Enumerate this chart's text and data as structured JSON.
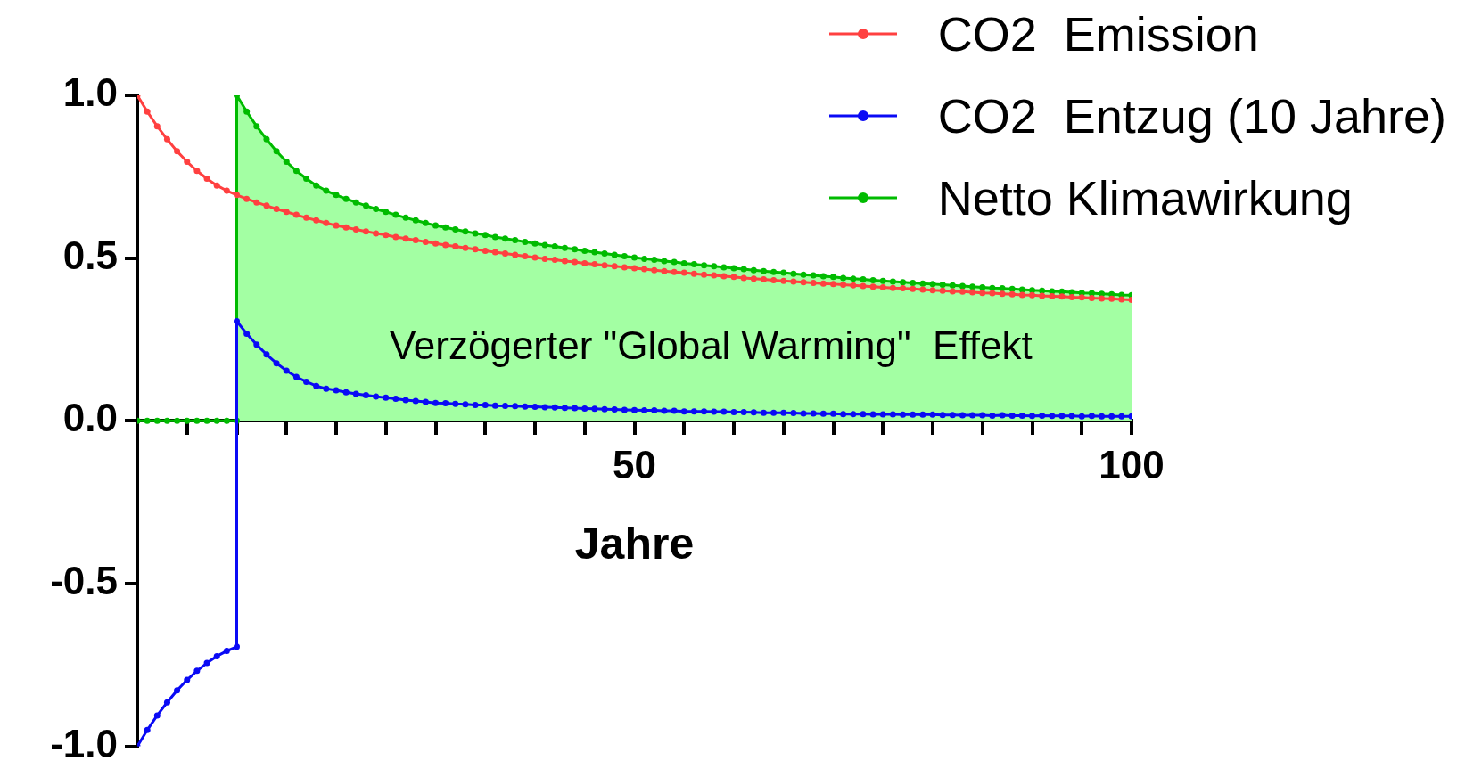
{
  "chart_data": {
    "type": "line",
    "xlabel": "Jahre",
    "legend": "top right",
    "marker": "circle",
    "line_style": "solid",
    "xlim": [
      0,
      100
    ],
    "ylim": [
      -1,
      1
    ],
    "xticks": [
      {
        "value": 0,
        "label": null
      },
      {
        "value": 5,
        "label": null
      },
      {
        "value": 10,
        "label": null
      },
      {
        "value": 15,
        "label": null
      },
      {
        "value": 20,
        "label": null
      },
      {
        "value": 25,
        "label": null
      },
      {
        "value": 30,
        "label": null
      },
      {
        "value": 35,
        "label": null
      },
      {
        "value": 40,
        "label": null
      },
      {
        "value": 45,
        "label": null
      },
      50,
      {
        "value": 55,
        "label": null
      },
      {
        "value": 60,
        "label": null
      },
      {
        "value": 65,
        "label": null
      },
      {
        "value": 70,
        "label": null
      },
      {
        "value": 75,
        "label": null
      },
      {
        "value": 80,
        "label": null
      },
      {
        "value": 85,
        "label": null
      },
      {
        "value": 90,
        "label": null
      },
      {
        "value": 95,
        "label": null
      },
      100
    ],
    "yticks": [
      {
        "value": -1,
        "label": "-1.0"
      },
      {
        "value": -0.5,
        "label": "-0.5"
      },
      {
        "value": 0,
        "label": "0.0"
      },
      {
        "value": 0.5,
        "label": "0.5"
      },
      {
        "value": 1,
        "label": "1.0"
      }
    ],
    "annotations": [
      "Verzögerter \"Global Warming\"  Effekt"
    ],
    "series": [
      {
        "name": "CO2  Emission",
        "color": "#ff4040",
        "x": [
          0,
          1,
          2,
          3,
          4,
          5,
          6,
          7,
          8,
          9,
          10,
          11,
          12,
          13,
          14,
          15,
          16,
          17,
          18,
          19,
          20,
          21,
          22,
          23,
          24,
          25,
          26,
          27,
          28,
          29,
          30,
          31,
          32,
          33,
          34,
          35,
          36,
          37,
          38,
          39,
          40,
          41,
          42,
          43,
          44,
          45,
          46,
          47,
          48,
          49,
          50,
          51,
          52,
          53,
          54,
          55,
          56,
          57,
          58,
          59,
          60,
          61,
          62,
          63,
          64,
          65,
          66,
          67,
          68,
          69,
          70,
          71,
          72,
          73,
          74,
          75,
          76,
          77,
          78,
          79,
          80,
          81,
          82,
          83,
          84,
          85,
          86,
          87,
          88,
          89,
          90,
          91,
          92,
          93,
          94,
          95,
          96,
          97,
          98,
          99,
          100
        ],
        "values": [
          1.0,
          0.95,
          0.905,
          0.865,
          0.828,
          0.796,
          0.768,
          0.744,
          0.723,
          0.707,
          0.694,
          0.682,
          0.671,
          0.661,
          0.651,
          0.642,
          0.633,
          0.624,
          0.616,
          0.608,
          0.6,
          0.594,
          0.588,
          0.582,
          0.576,
          0.571,
          0.565,
          0.56,
          0.555,
          0.55,
          0.545,
          0.54,
          0.536,
          0.531,
          0.527,
          0.522,
          0.518,
          0.514,
          0.51,
          0.506,
          0.502,
          0.498,
          0.495,
          0.491,
          0.488,
          0.484,
          0.481,
          0.478,
          0.475,
          0.472,
          0.469,
          0.466,
          0.463,
          0.46,
          0.457,
          0.455,
          0.452,
          0.449,
          0.447,
          0.444,
          0.442,
          0.439,
          0.437,
          0.435,
          0.432,
          0.43,
          0.428,
          0.426,
          0.424,
          0.422,
          0.42,
          0.418,
          0.416,
          0.414,
          0.412,
          0.41,
          0.408,
          0.407,
          0.405,
          0.403,
          0.401,
          0.4,
          0.398,
          0.397,
          0.395,
          0.393,
          0.392,
          0.39,
          0.389,
          0.387,
          0.386,
          0.384,
          0.383,
          0.382,
          0.38,
          0.379,
          0.377,
          0.376,
          0.375,
          0.373,
          0.372
        ]
      },
      {
        "name": "CO2  Entzug (10 Jahre)",
        "color": "#0a0af5",
        "x": [
          0,
          1,
          2,
          3,
          4,
          5,
          6,
          7,
          8,
          9,
          10,
          10,
          11,
          12,
          13,
          14,
          15,
          16,
          17,
          18,
          19,
          20,
          21,
          22,
          23,
          24,
          25,
          26,
          27,
          28,
          29,
          30,
          31,
          32,
          33,
          34,
          35,
          36,
          37,
          38,
          39,
          40,
          41,
          42,
          43,
          44,
          45,
          46,
          47,
          48,
          49,
          50,
          51,
          52,
          53,
          54,
          55,
          56,
          57,
          58,
          59,
          60,
          61,
          62,
          63,
          64,
          65,
          66,
          67,
          68,
          69,
          70,
          71,
          72,
          73,
          74,
          75,
          76,
          77,
          78,
          79,
          80,
          81,
          82,
          83,
          84,
          85,
          86,
          87,
          88,
          89,
          90,
          91,
          92,
          93,
          94,
          95,
          96,
          97,
          98,
          99,
          100
        ],
        "values": [
          -1.0,
          -0.95,
          -0.905,
          -0.865,
          -0.828,
          -0.796,
          -0.768,
          -0.744,
          -0.723,
          -0.707,
          -0.694,
          0.306,
          0.268,
          0.234,
          0.204,
          0.177,
          0.154,
          0.135,
          0.12,
          0.107,
          0.099,
          0.094,
          0.088,
          0.083,
          0.079,
          0.075,
          0.071,
          0.068,
          0.064,
          0.061,
          0.058,
          0.055,
          0.054,
          0.052,
          0.051,
          0.049,
          0.049,
          0.047,
          0.046,
          0.045,
          0.044,
          0.043,
          0.042,
          0.041,
          0.04,
          0.039,
          0.038,
          0.037,
          0.036,
          0.035,
          0.034,
          0.033,
          0.032,
          0.032,
          0.031,
          0.031,
          0.029,
          0.029,
          0.029,
          0.028,
          0.028,
          0.027,
          0.027,
          0.026,
          0.025,
          0.025,
          0.025,
          0.024,
          0.023,
          0.023,
          0.022,
          0.022,
          0.021,
          0.021,
          0.021,
          0.02,
          0.02,
          0.02,
          0.019,
          0.019,
          0.019,
          0.019,
          0.018,
          0.018,
          0.017,
          0.017,
          0.017,
          0.016,
          0.017,
          0.016,
          0.016,
          0.015,
          0.016,
          0.015,
          0.015,
          0.015,
          0.014,
          0.015,
          0.014,
          0.014,
          0.014,
          0.014
        ]
      },
      {
        "name": "Netto Klimawirkung",
        "color": "#00bb00",
        "type": "area",
        "x": [
          0,
          1,
          2,
          3,
          4,
          5,
          6,
          7,
          8,
          9,
          10,
          10,
          11,
          12,
          13,
          14,
          15,
          16,
          17,
          18,
          19,
          20,
          21,
          22,
          23,
          24,
          25,
          26,
          27,
          28,
          29,
          30,
          31,
          32,
          33,
          34,
          35,
          36,
          37,
          38,
          39,
          40,
          41,
          42,
          43,
          44,
          45,
          46,
          47,
          48,
          49,
          50,
          51,
          52,
          53,
          54,
          55,
          56,
          57,
          58,
          59,
          60,
          61,
          62,
          63,
          64,
          65,
          66,
          67,
          68,
          69,
          70,
          71,
          72,
          73,
          74,
          75,
          76,
          77,
          78,
          79,
          80,
          81,
          82,
          83,
          84,
          85,
          86,
          87,
          88,
          89,
          90,
          91,
          92,
          93,
          94,
          95,
          96,
          97,
          98,
          99,
          100
        ],
        "values": [
          0,
          0,
          0,
          0,
          0,
          0,
          0,
          0,
          0,
          0,
          0,
          1.0,
          0.95,
          0.905,
          0.865,
          0.828,
          0.796,
          0.768,
          0.744,
          0.723,
          0.707,
          0.694,
          0.682,
          0.671,
          0.661,
          0.651,
          0.642,
          0.633,
          0.624,
          0.616,
          0.608,
          0.6,
          0.594,
          0.588,
          0.582,
          0.576,
          0.571,
          0.565,
          0.56,
          0.555,
          0.55,
          0.545,
          0.54,
          0.536,
          0.531,
          0.527,
          0.522,
          0.518,
          0.514,
          0.51,
          0.506,
          0.502,
          0.498,
          0.495,
          0.491,
          0.488,
          0.484,
          0.481,
          0.478,
          0.475,
          0.472,
          0.469,
          0.466,
          0.463,
          0.46,
          0.457,
          0.455,
          0.452,
          0.449,
          0.447,
          0.444,
          0.442,
          0.439,
          0.437,
          0.435,
          0.432,
          0.43,
          0.428,
          0.426,
          0.424,
          0.422,
          0.42,
          0.418,
          0.416,
          0.414,
          0.412,
          0.41,
          0.408,
          0.407,
          0.405,
          0.403,
          0.401,
          0.4,
          0.398,
          0.397,
          0.395,
          0.393,
          0.392,
          0.39,
          0.389,
          0.387,
          0.386
        ]
      }
    ]
  }
}
